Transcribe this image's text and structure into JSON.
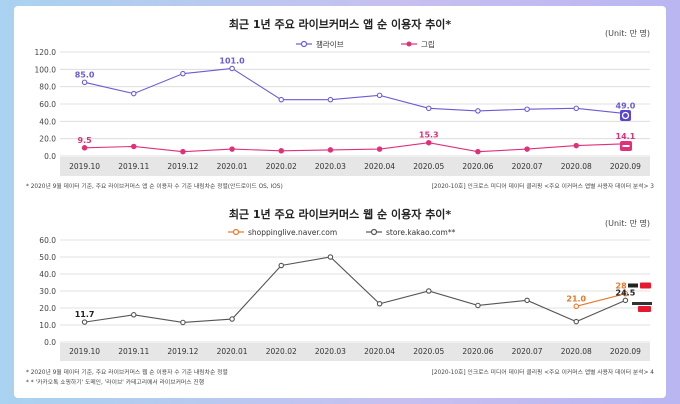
{
  "chart_data": [
    {
      "type": "line",
      "title": "최근 1년 주요 라이브커머스 앱 순 이용자 추이*",
      "unit": "(Unit: 만 명)",
      "categories": [
        "2019.10",
        "2019.11",
        "2019.12",
        "2020.01",
        "2020.02",
        "2020.03",
        "2020.04",
        "2020.05",
        "2020.06",
        "2020.07",
        "2020.08",
        "2020.09"
      ],
      "ylim": [
        0,
        120
      ],
      "yticks": [
        "0.0",
        "20.0",
        "40.0",
        "60.0",
        "80.0",
        "100.0",
        "120.0"
      ],
      "series": [
        {
          "name": "잼라이브",
          "color": "#6b5bd6",
          "values": [
            85.0,
            72,
            95,
            101.0,
            65,
            65,
            70,
            55,
            52,
            54,
            55,
            49.0
          ],
          "labels": [
            {
              "i": 0,
              "text": "85.0"
            },
            {
              "i": 3,
              "text": "101.0"
            },
            {
              "i": 11,
              "text": "49.0"
            }
          ]
        },
        {
          "name": "그립",
          "color": "#e0307a",
          "values": [
            9.5,
            11,
            5,
            8,
            6,
            7,
            8,
            15.3,
            5,
            8,
            12,
            14.1
          ],
          "labels": [
            {
              "i": 0,
              "text": "9.5"
            },
            {
              "i": 7,
              "text": "15.3"
            },
            {
              "i": 11,
              "text": "14.1"
            }
          ]
        }
      ],
      "footnote_left": "* 2020년 9월  데이터 기준, 주요 라이브커머스 앱 순 이용자 수  기준 내림차순 정렬(안드로이드 OS, IOS)",
      "footnote_right": "[2020-10호] 인크로스 미디어 데이터 클리핑 <주요 이커머스 앱별 사용자 데이터 분석>  3"
    },
    {
      "type": "line",
      "title": "최근 1년 주요 라이브커머스 웹 순 이용자 추이*",
      "unit": "(Unit: 만 명)",
      "categories": [
        "2019.10",
        "2019.11",
        "2019.12",
        "2020.01",
        "2020.02",
        "2020.03",
        "2020.04",
        "2020.05",
        "2020.06",
        "2020.07",
        "2020.08",
        "2020.09"
      ],
      "ylim": [
        0,
        60
      ],
      "yticks": [
        "0.0",
        "10.0",
        "20.0",
        "30.0",
        "40.0",
        "50.0",
        "60.0"
      ],
      "series": [
        {
          "name": "shoppinglive.naver.com",
          "color": "#e8782a",
          "values": [
            null,
            null,
            null,
            null,
            null,
            null,
            null,
            null,
            null,
            null,
            21.0,
            28.4
          ],
          "labels": [
            {
              "i": 10,
              "text": "21.0"
            },
            {
              "i": 11,
              "text": "28.4"
            }
          ]
        },
        {
          "name": "store.kakao.com**",
          "color": "#555555",
          "values": [
            11.7,
            16,
            11.5,
            13.5,
            45,
            50,
            22.5,
            30,
            21.5,
            24.5,
            12,
            24.5
          ],
          "labels": [
            {
              "i": 0,
              "text": "11.7"
            },
            {
              "i": 11,
              "text": "24.5"
            }
          ]
        }
      ],
      "footnote_left": "* 2020년 9월  데이터 기준, 주요 라이브커머스 웹 순 이용자 수  기준 내림차순 정렬",
      "footnote_left2": "* * '카카오톡 쇼핑하기' 도메인, '라이브' 카테고리에서 라이브커머스 진행",
      "footnote_right": "[2020-10호] 인크로스 미디어 데이터 클리핑 <주요 이커머스 앱별 사용자 데이터 분석>  4"
    }
  ]
}
